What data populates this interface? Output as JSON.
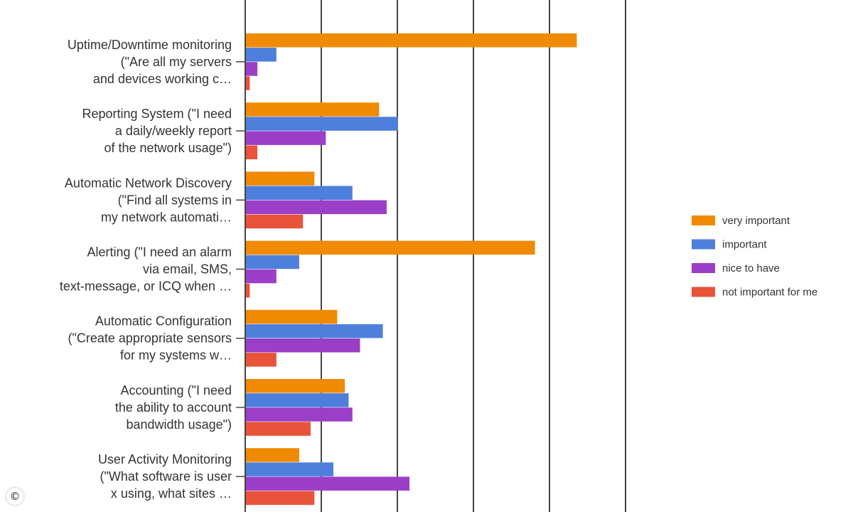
{
  "chart_data": {
    "type": "bar",
    "orientation": "horizontal",
    "categories": [
      [
        "Uptime/Downtime monitoring",
        "(\"Are all my servers",
        "and devices working c…"
      ],
      [
        "Reporting System (\"I need",
        "a daily/weekly report",
        "of the network usage\")"
      ],
      [
        "Automatic Network Discovery",
        "(\"Find all systems in",
        "my network automati…"
      ],
      [
        "Alerting (\"I need an alarm",
        "via email, SMS,",
        "text-message, or ICQ when …"
      ],
      [
        "Automatic Configuration",
        "(\"Create appropriate sensors",
        "for my systems w…"
      ],
      [
        "Accounting (\"I need",
        "the ability to account",
        "bandwidth usage\")"
      ],
      [
        "User Activity Monitoring",
        "(\"What software is user",
        "x using, what sites …"
      ]
    ],
    "series": [
      {
        "name": "very important",
        "color": "#f08a00",
        "values": [
          87,
          35,
          18,
          76,
          24,
          26,
          14
        ]
      },
      {
        "name": "important",
        "color": "#4e7fdc",
        "values": [
          8,
          40,
          28,
          14,
          36,
          27,
          23
        ]
      },
      {
        "name": "nice to have",
        "color": "#9b3ec8",
        "values": [
          3,
          21,
          37,
          8,
          30,
          28,
          43
        ]
      },
      {
        "name": "not important for me",
        "color": "#e8533a",
        "values": [
          1,
          3,
          15,
          1,
          8,
          17,
          18
        ]
      }
    ],
    "xlim": [
      0,
      100
    ],
    "gridlines": [
      0,
      20,
      40,
      60,
      80,
      100
    ],
    "grid": true,
    "legend_position": "right"
  },
  "copyright_symbol": "©"
}
